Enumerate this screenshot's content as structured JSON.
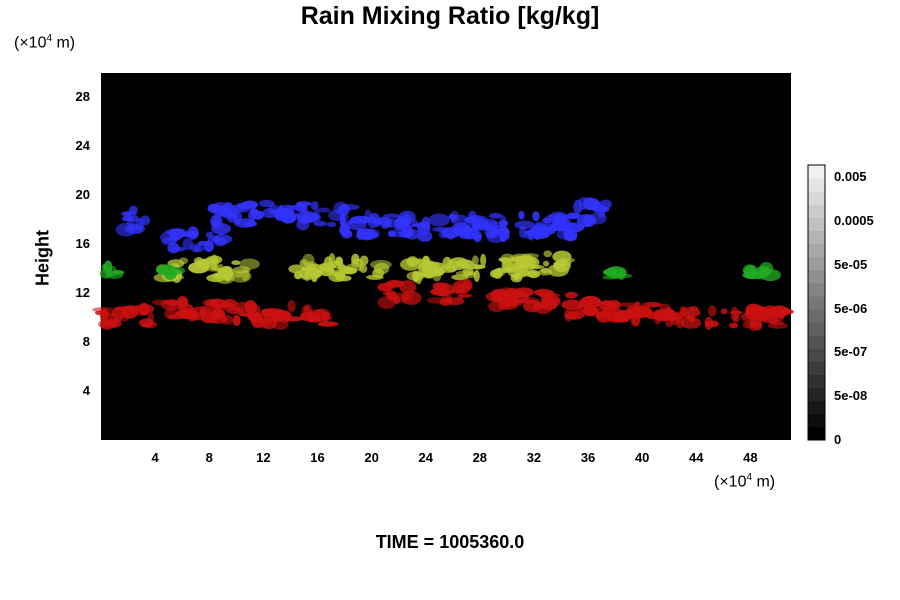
{
  "chart_data": {
    "type": "heatmap",
    "title": "Rain Mixing Ratio [kg/kg]",
    "ylabel": "Height",
    "y_unit_prefix": "(×10",
    "y_unit_exp": "4",
    "y_unit_suffix": " m)",
    "x_unit_prefix": "(×10",
    "x_unit_exp": "4",
    "x_unit_suffix": " m)",
    "xlim": [
      0,
      51
    ],
    "ylim": [
      0,
      30
    ],
    "x_ticks": [
      "4",
      "8",
      "12",
      "16",
      "20",
      "24",
      "28",
      "32",
      "36",
      "40",
      "44",
      "48"
    ],
    "y_ticks": [
      "4",
      "8",
      "12",
      "16",
      "20",
      "24",
      "28"
    ],
    "background": "#000000",
    "colorbar": {
      "labels": [
        "0",
        "5e-08",
        "5e-07",
        "5e-06",
        "5e-05",
        "0.0005",
        "0.005"
      ],
      "scale": "log",
      "colors_from": "#000000",
      "colors_to": "#f0f0f0"
    },
    "layers": [
      {
        "color": "#3333ff",
        "height_range": [
          15.5,
          19.5
        ],
        "clusters": [
          [
            2.5,
            18,
            1
          ],
          [
            7,
            16.5,
            2
          ],
          [
            11,
            18.5,
            3
          ],
          [
            16,
            18.5,
            2.5
          ],
          [
            24,
            17.5,
            6
          ],
          [
            31,
            17.5,
            4
          ],
          [
            36,
            18.8,
            1.5
          ]
        ]
      },
      {
        "color": "#b8c833",
        "height_range": [
          12.5,
          16
        ],
        "clusters": [
          [
            7,
            14,
            2.5
          ],
          [
            10,
            14,
            1
          ],
          [
            16,
            14,
            2
          ],
          [
            19,
            14,
            2
          ],
          [
            24,
            14,
            1.5
          ],
          [
            28,
            14,
            4
          ],
          [
            33,
            14.5,
            2
          ]
        ]
      },
      {
        "color": "#22aa22",
        "height_range": [
          13,
          14.5
        ],
        "clusters": [
          [
            0.8,
            13.8,
            0.6
          ],
          [
            5,
            13.7,
            0.6
          ],
          [
            38,
            13.5,
            0.8
          ],
          [
            48.5,
            13.8,
            1
          ]
        ]
      },
      {
        "color": "#cc1111",
        "height_range": [
          9,
          12.5
        ],
        "clusters": [
          [
            2,
            10,
            2
          ],
          [
            6,
            10.5,
            2
          ],
          [
            9.5,
            10.5,
            2
          ],
          [
            13,
            10.2,
            1.5
          ],
          [
            16,
            10,
            1
          ],
          [
            22,
            12,
            1
          ],
          [
            26,
            12,
            1.5
          ],
          [
            32,
            11.5,
            3
          ],
          [
            37,
            10.5,
            2.5
          ],
          [
            42,
            10.3,
            3
          ],
          [
            48,
            10,
            3
          ]
        ]
      }
    ],
    "time_label": "TIME = 1005360.0"
  }
}
